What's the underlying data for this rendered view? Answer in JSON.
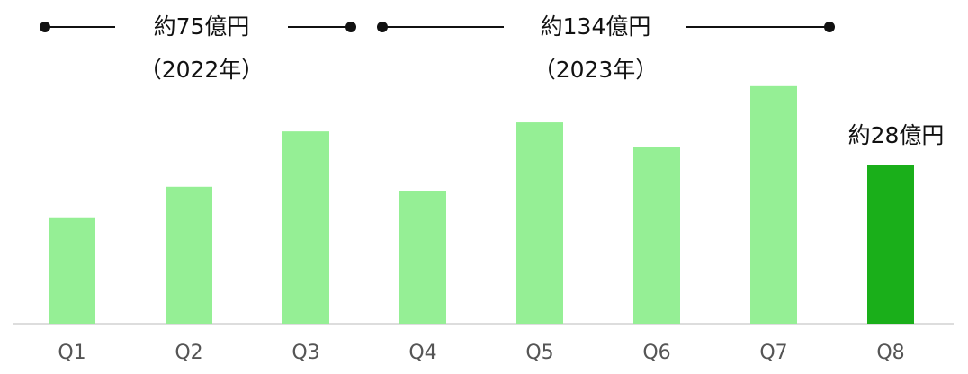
{
  "chart_data": {
    "type": "bar",
    "categories": [
      "Q1",
      "Q2",
      "Q3",
      "Q4",
      "Q5",
      "Q6",
      "Q7",
      "Q8"
    ],
    "values": [
      18.8,
      24.2,
      34.0,
      23.5,
      35.6,
      31.3,
      42.0,
      28
    ],
    "colors": [
      "#95ef95",
      "#95ef95",
      "#95ef95",
      "#95ef95",
      "#95ef95",
      "#95ef95",
      "#95ef95",
      "#1aaf1a"
    ],
    "annotations": [
      {
        "text": "約75億円",
        "subtext": "（2022年）"
      },
      {
        "text": "約134億円",
        "subtext": "（2023年）"
      },
      {
        "text": "約28億円"
      }
    ]
  }
}
